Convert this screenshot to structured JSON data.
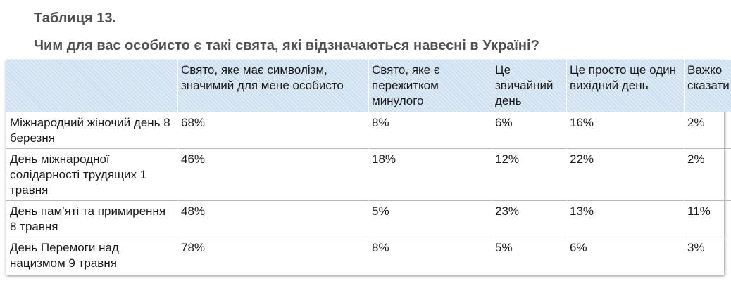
{
  "title": "Таблиця 13.",
  "question": "Чим для вас особисто є такі свята, які відзначаються навесні в Україні?",
  "table": {
    "headers": [
      "",
      "Свято, яке має символізм, значимий для мене особисто",
      "Свято, яке є пережитком минулого",
      "Це звичайний день",
      "Це просто ще один вихідний день",
      "Важко сказати"
    ],
    "rows": [
      {
        "label": "Міжнародний жіночий день 8 березня",
        "values": [
          "68%",
          "8%",
          "6%",
          "16%",
          "2%"
        ]
      },
      {
        "label": "День міжнародної солідарності трудящих 1 травня",
        "values": [
          "46%",
          "18%",
          "12%",
          "22%",
          "2%"
        ]
      },
      {
        "label": "День пам'яті та примирення 8 травня",
        "values": [
          "48%",
          "5%",
          "23%",
          "13%",
          "11%"
        ]
      },
      {
        "label": "День Перемоги над нацизмом 9 травня",
        "values": [
          "78%",
          "8%",
          "5%",
          "6%",
          "3%"
        ]
      }
    ]
  }
}
